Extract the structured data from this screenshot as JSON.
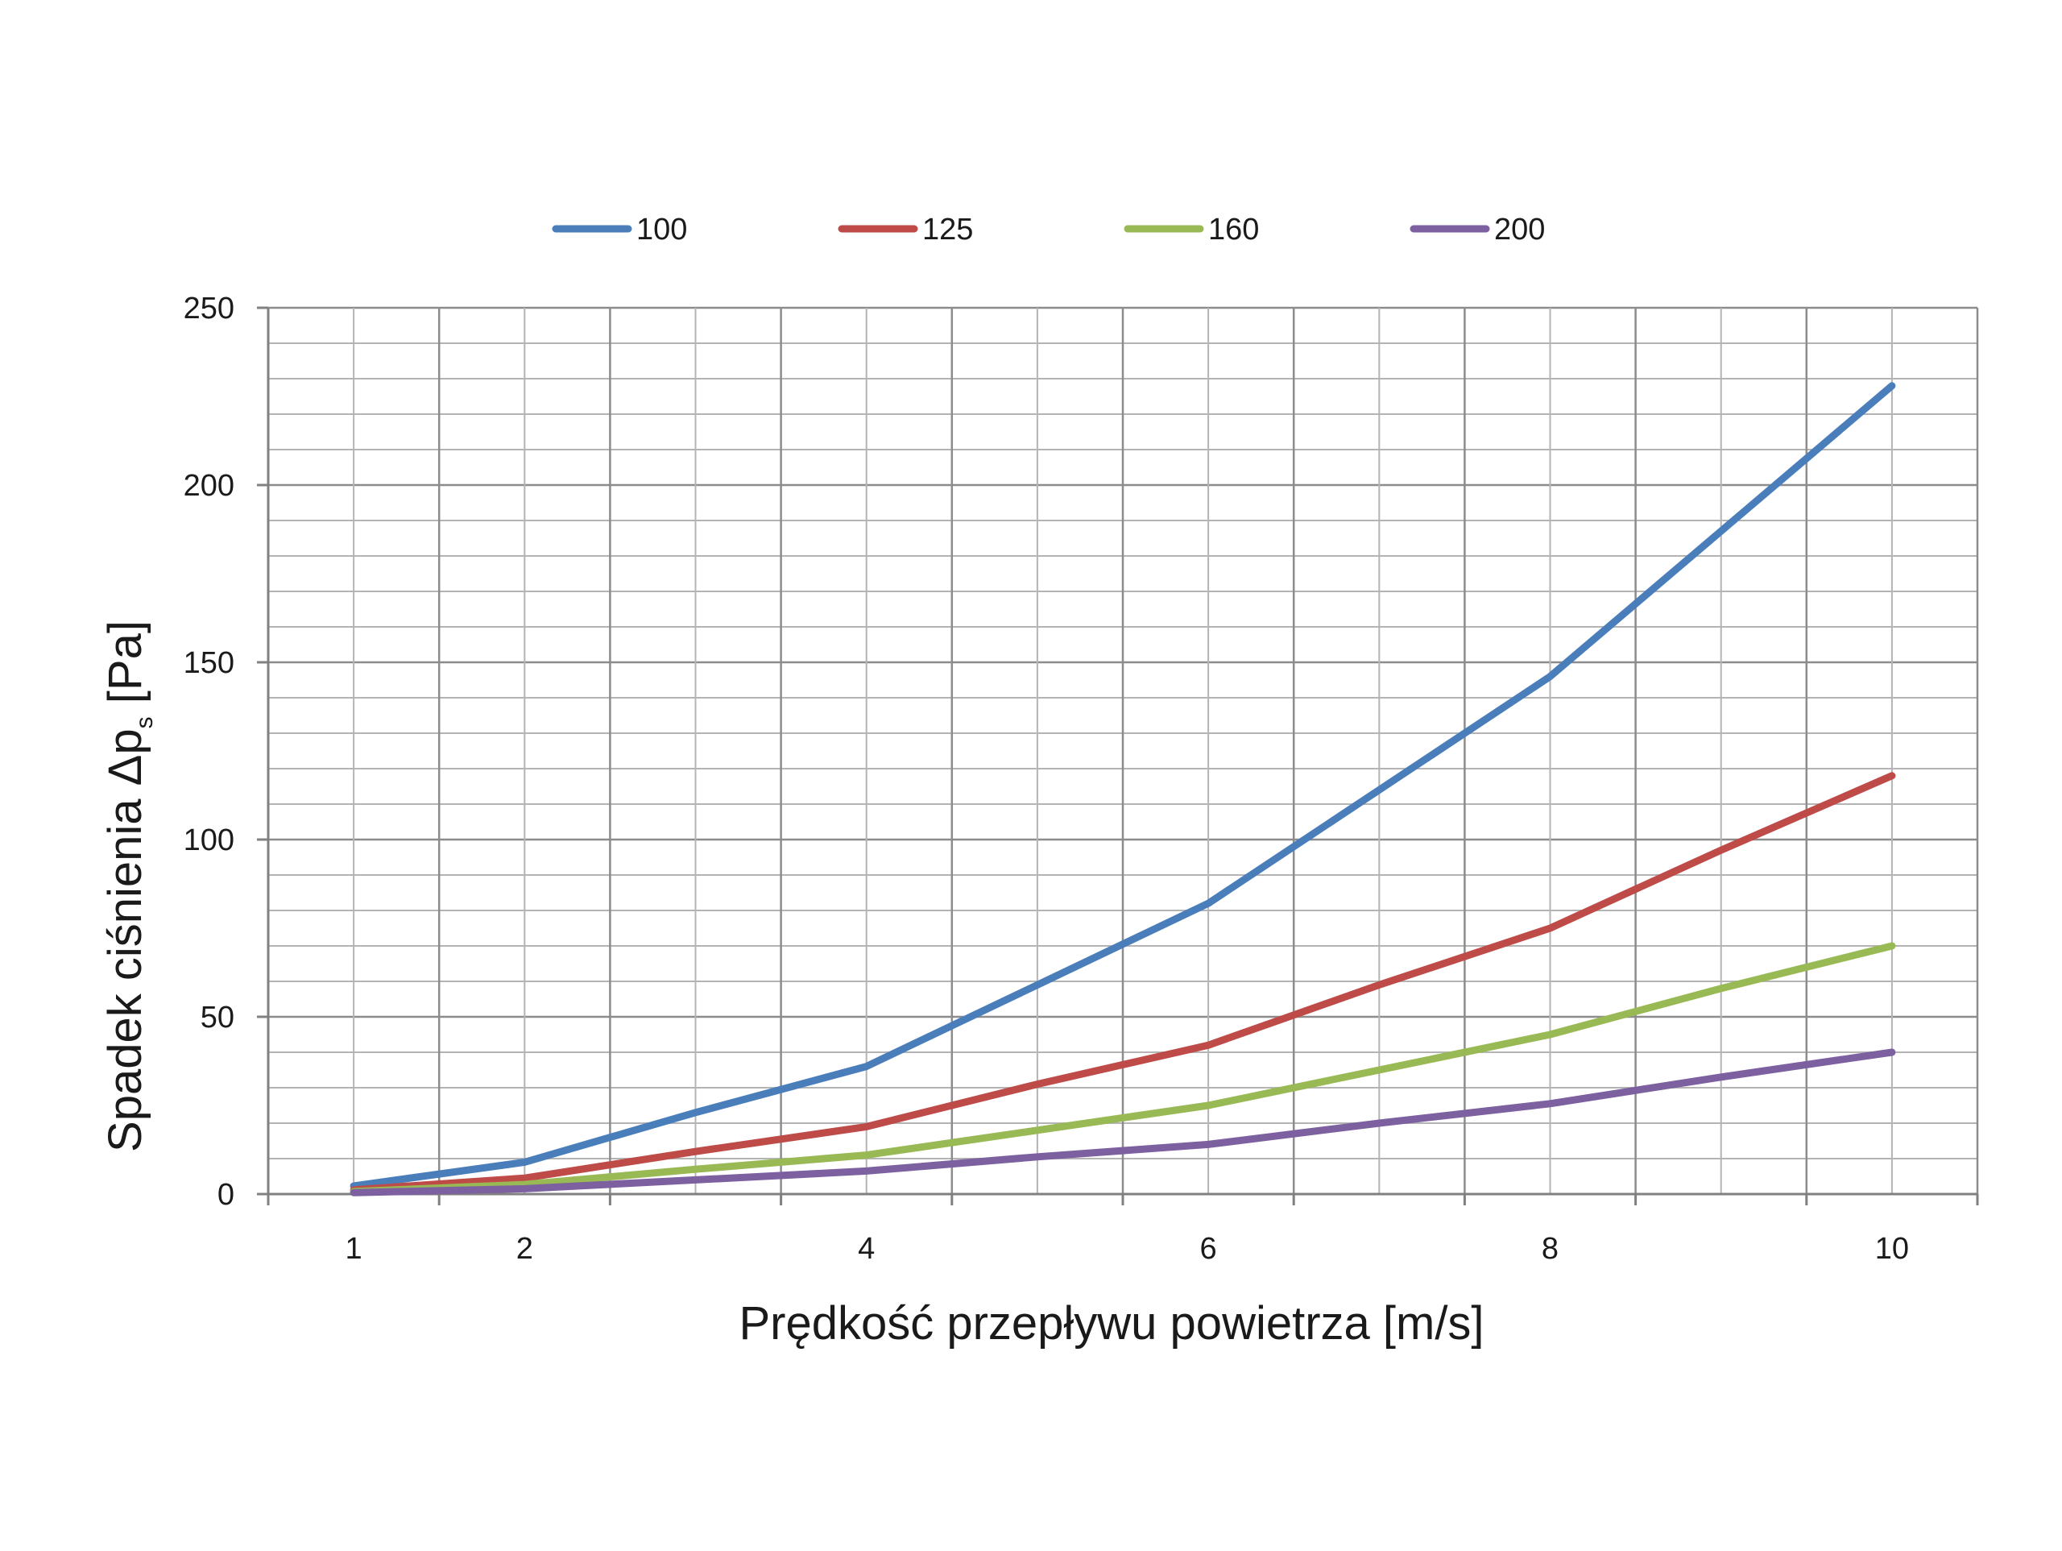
{
  "chart_data": {
    "type": "line",
    "x_categories": [
      "1",
      "2",
      "4",
      "6",
      "8",
      "10"
    ],
    "x_count": 10,
    "xlabel": "Prędkość przepływu powietrza [m/s]",
    "ylabel": "Spadek ciśnienia Δp",
    "ylabel_sub": "s",
    "ylabel_unit": " [Pa]",
    "ylim": [
      0,
      250
    ],
    "yticks": [
      0,
      50,
      100,
      150,
      200,
      250
    ],
    "y_minor_step": 10,
    "grid": true,
    "legend_position": "top",
    "series": [
      {
        "name": "100",
        "color": "#4a7ebb",
        "points": [
          [
            1,
            2.3
          ],
          [
            2,
            9
          ],
          [
            3,
            23
          ],
          [
            4,
            36
          ],
          [
            5,
            59
          ],
          [
            6,
            82
          ],
          [
            7,
            114
          ],
          [
            8,
            146
          ],
          [
            9,
            187
          ],
          [
            10,
            228
          ]
        ]
      },
      {
        "name": "125",
        "color": "#be4b48",
        "points": [
          [
            1,
            1.2
          ],
          [
            2,
            4.5
          ],
          [
            3,
            12
          ],
          [
            4,
            19
          ],
          [
            5,
            31
          ],
          [
            6,
            42
          ],
          [
            7,
            59
          ],
          [
            8,
            75
          ],
          [
            9,
            97
          ],
          [
            10,
            118
          ]
        ]
      },
      {
        "name": "160",
        "color": "#98b954",
        "points": [
          [
            1,
            0.7
          ],
          [
            2,
            2.7
          ],
          [
            3,
            7
          ],
          [
            4,
            11
          ],
          [
            5,
            18
          ],
          [
            6,
            25
          ],
          [
            7,
            35
          ],
          [
            8,
            45
          ],
          [
            9,
            58
          ],
          [
            10,
            70
          ]
        ]
      },
      {
        "name": "200",
        "color": "#7d60a0",
        "points": [
          [
            1,
            0.4
          ],
          [
            2,
            1.5
          ],
          [
            3,
            4
          ],
          [
            4,
            6.5
          ],
          [
            5,
            10.5
          ],
          [
            6,
            14
          ],
          [
            7,
            20
          ],
          [
            8,
            25.5
          ],
          [
            9,
            33
          ],
          [
            10,
            40
          ]
        ]
      }
    ]
  }
}
